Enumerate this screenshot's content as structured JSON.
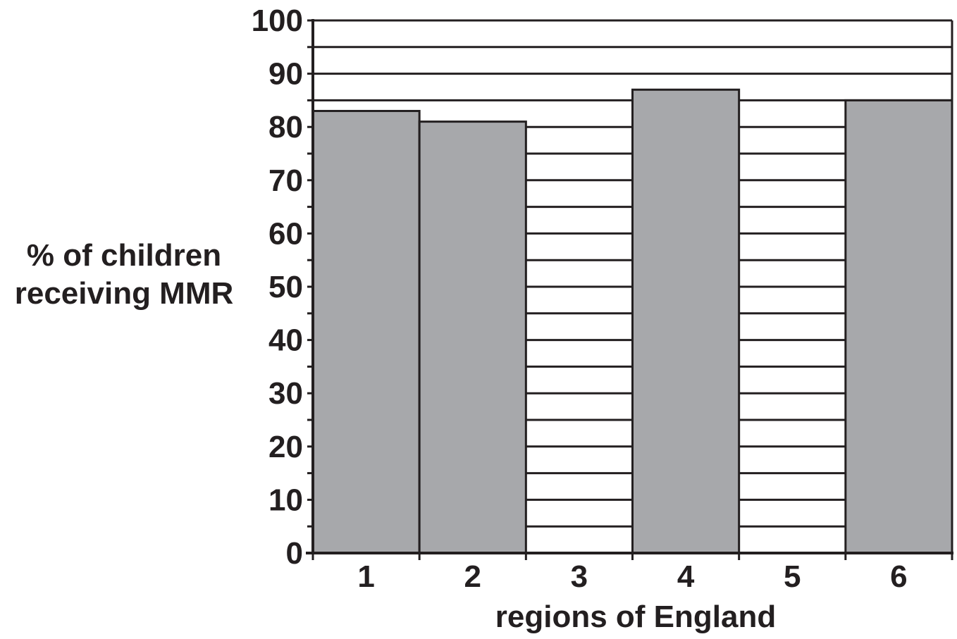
{
  "chart_data": {
    "type": "bar",
    "categories": [
      "1",
      "2",
      "3",
      "4",
      "5",
      "6"
    ],
    "values": [
      83,
      81,
      null,
      87,
      null,
      85
    ],
    "xlabel": "regions of England",
    "ylabel_lines": [
      "% of children",
      "receiving MMR"
    ],
    "ylim": [
      0,
      100
    ],
    "yticks": [
      0,
      10,
      20,
      30,
      40,
      50,
      60,
      70,
      80,
      90,
      100
    ],
    "minor_step": 5,
    "grid": true,
    "colors": {
      "bar": "#a7a8ab",
      "line": "#231f20",
      "background": "#ffffff"
    }
  }
}
